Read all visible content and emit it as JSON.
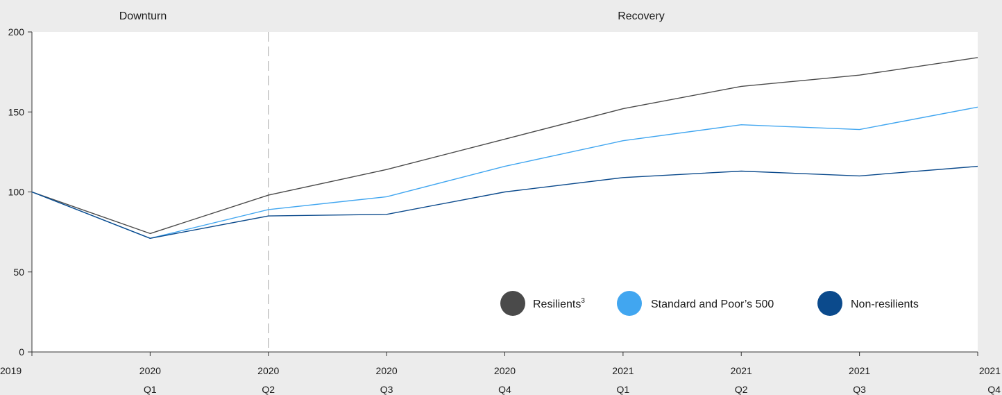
{
  "chart_data": {
    "type": "line",
    "phases": [
      "Downturn",
      "Recovery"
    ],
    "x": [
      {
        "year": "2019",
        "quarter": ""
      },
      {
        "year": "2020",
        "quarter": "Q1"
      },
      {
        "year": "2020",
        "quarter": "Q2"
      },
      {
        "year": "2020",
        "quarter": "Q3"
      },
      {
        "year": "2020",
        "quarter": "Q4"
      },
      {
        "year": "2021",
        "quarter": "Q1"
      },
      {
        "year": "2021",
        "quarter": "Q2"
      },
      {
        "year": "2021",
        "quarter": "Q3"
      },
      {
        "year": "2021",
        "quarter": "Q4"
      }
    ],
    "ylim": [
      0,
      200
    ],
    "yticks": [
      0,
      50,
      100,
      150,
      200
    ],
    "divider_index": 2,
    "grid": false,
    "legend_position": "bottom-right",
    "series": [
      {
        "name": "Resilients",
        "superscript": "3",
        "color": "#4a4a4a",
        "values": [
          100,
          74,
          98,
          114,
          133,
          152,
          166,
          173,
          184
        ]
      },
      {
        "name": "Standard and Poor’s 500",
        "color": "#41a6f0",
        "values": [
          100,
          71,
          89,
          97,
          116,
          132,
          142,
          139,
          153
        ]
      },
      {
        "name": "Non-resilients",
        "color": "#0b4a8c",
        "values": [
          100,
          71,
          85,
          86,
          100,
          109,
          113,
          110,
          116
        ]
      }
    ]
  }
}
